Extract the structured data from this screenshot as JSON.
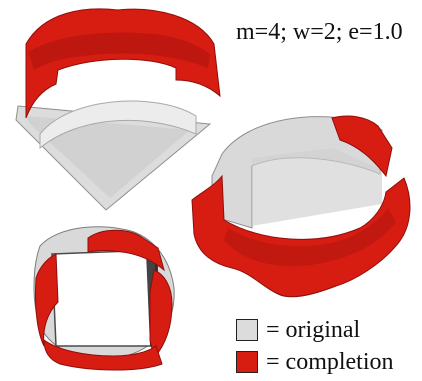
{
  "caption": {
    "params": "m=4; w=2; e=1.0"
  },
  "legend": {
    "items": [
      {
        "label": "= original",
        "color": "#dcdcdc"
      },
      {
        "label": "= completion",
        "color": "#d71c12"
      }
    ]
  },
  "colors": {
    "original": "#dcdcdc",
    "original_shadow": "#9d9d9d",
    "completion": "#d71c12",
    "completion_dark": "#8e0f0c",
    "background": "#ffffff"
  }
}
